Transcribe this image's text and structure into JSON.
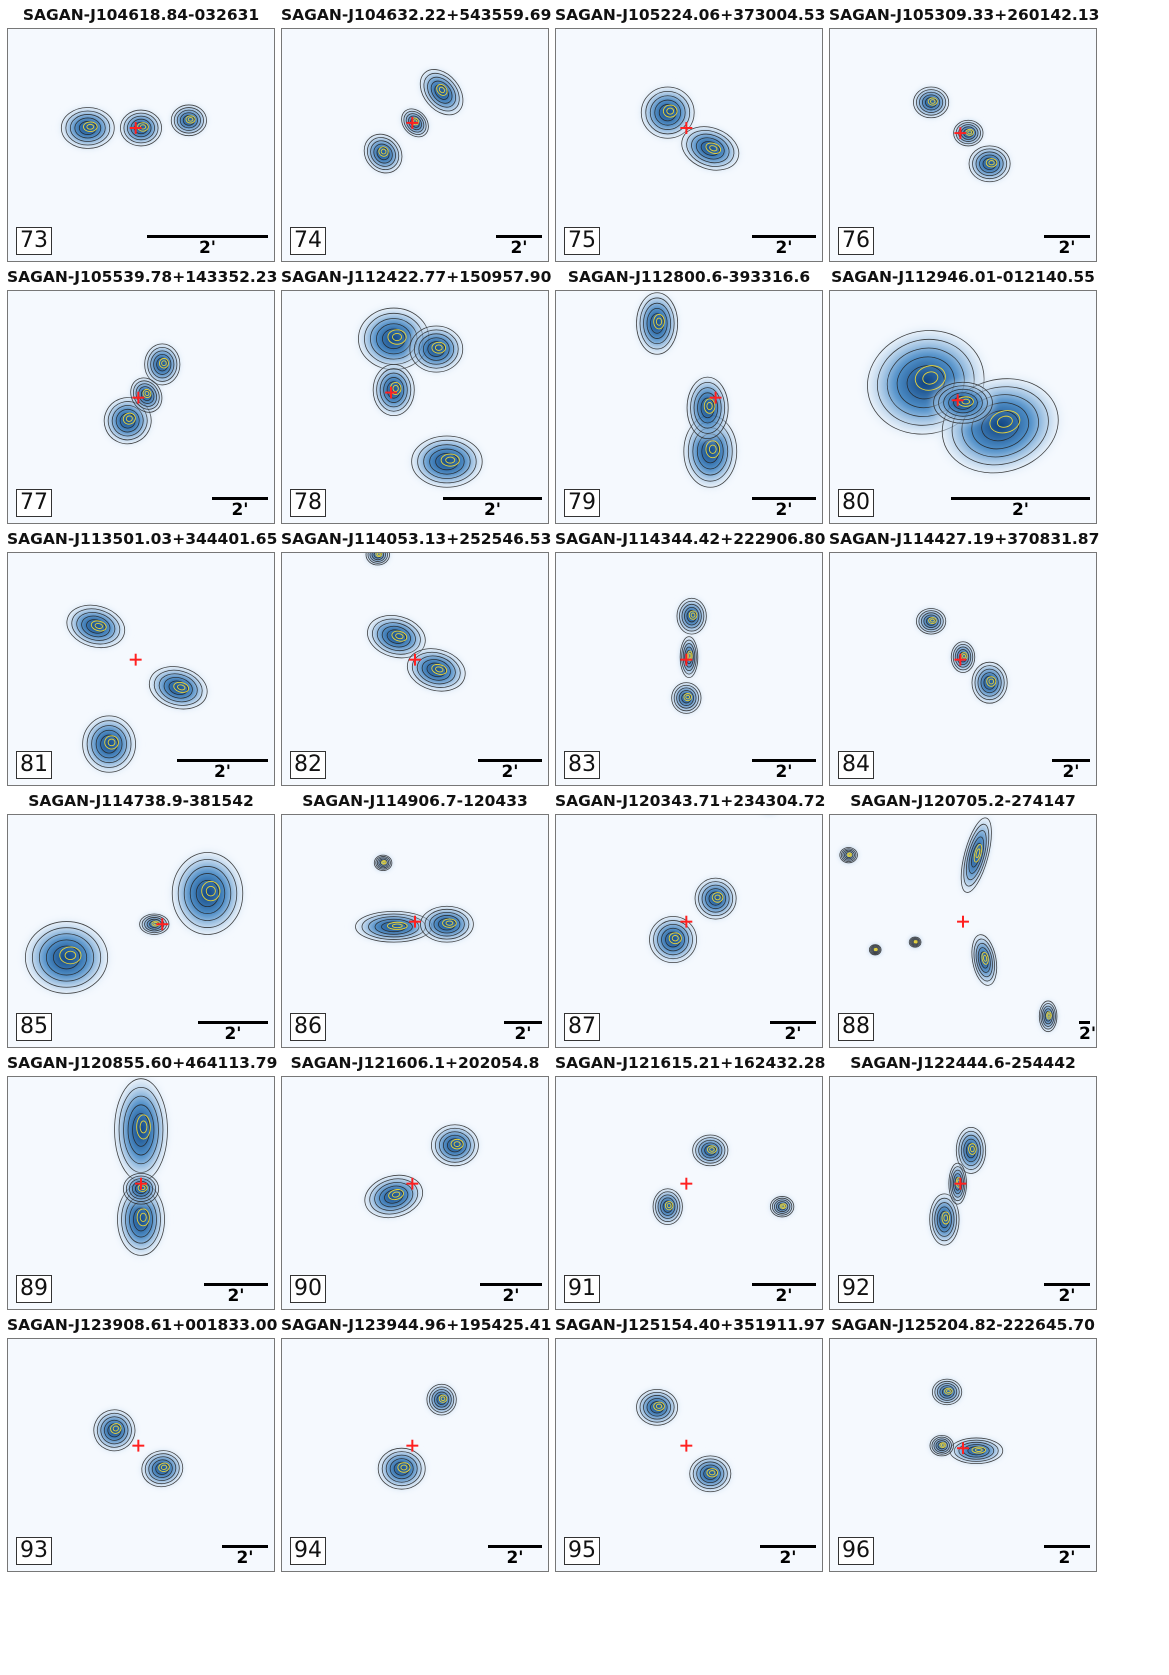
{
  "panels": [
    {
      "id": "73",
      "title": "SAGAN-J104618.84-032631",
      "sources": [
        [
          0.3,
          0.48,
          0.09,
          0.08,
          0
        ],
        [
          0.5,
          0.48,
          0.07,
          0.07,
          0
        ],
        [
          0.68,
          0.45,
          0.06,
          0.06,
          0
        ]
      ],
      "cross": [
        0.48,
        0.48
      ],
      "scale_frac": 0.45
    },
    {
      "id": "74",
      "title": "SAGAN-J104632.22+543559.69",
      "sources": [
        [
          0.38,
          0.58,
          0.06,
          0.08,
          -40
        ],
        [
          0.6,
          0.34,
          0.06,
          0.1,
          -40
        ],
        [
          0.5,
          0.46,
          0.04,
          0.06,
          -40
        ]
      ],
      "cross": [
        0.49,
        0.46
      ],
      "scale_frac": 0.17
    },
    {
      "id": "75",
      "title": "SAGAN-J105224.06+373004.53",
      "sources": [
        [
          0.42,
          0.42,
          0.09,
          0.1,
          0
        ],
        [
          0.58,
          0.56,
          0.1,
          0.08,
          20
        ]
      ],
      "cross": [
        0.49,
        0.48
      ],
      "scale_frac": 0.24
    },
    {
      "id": "76",
      "title": "SAGAN-J105309.33+260142.13",
      "sources": [
        [
          0.38,
          0.38,
          0.06,
          0.06,
          0
        ],
        [
          0.52,
          0.5,
          0.05,
          0.05,
          0
        ],
        [
          0.6,
          0.62,
          0.07,
          0.07,
          0
        ]
      ],
      "cross": [
        0.49,
        0.5
      ],
      "scale_frac": 0.17
    },
    {
      "id": "77",
      "title": "SAGAN-J105539.78+143352.23",
      "sources": [
        [
          0.58,
          0.38,
          0.06,
          0.08,
          0
        ],
        [
          0.45,
          0.6,
          0.08,
          0.09,
          -20
        ],
        [
          0.52,
          0.5,
          0.05,
          0.07,
          -30
        ]
      ],
      "cross": [
        0.49,
        0.51
      ],
      "scale_frac": 0.21
    },
    {
      "id": "78",
      "title": "SAGAN-J112422.77+150957.90",
      "sources": [
        [
          0.42,
          0.28,
          0.12,
          0.12,
          0
        ],
        [
          0.58,
          0.32,
          0.09,
          0.09,
          0
        ],
        [
          0.42,
          0.48,
          0.07,
          0.1,
          0
        ],
        [
          0.62,
          0.76,
          0.12,
          0.1,
          0
        ]
      ],
      "cross": [
        0.41,
        0.49
      ],
      "scale_frac": 0.37
    },
    {
      "id": "79",
      "title": "SAGAN-J112800.6-393316.6",
      "sources": [
        [
          0.38,
          0.22,
          0.07,
          0.12,
          0
        ],
        [
          0.58,
          0.72,
          0.09,
          0.14,
          0
        ],
        [
          0.57,
          0.55,
          0.07,
          0.12,
          0
        ]
      ],
      "cross": [
        0.6,
        0.51
      ],
      "scale_frac": 0.24
    },
    {
      "id": "80",
      "title": "SAGAN-J112946.01-012140.55",
      "sources": [
        [
          0.36,
          0.45,
          0.2,
          0.2,
          -15
        ],
        [
          0.64,
          0.62,
          0.2,
          0.18,
          -15
        ],
        [
          0.5,
          0.53,
          0.1,
          0.08,
          0
        ]
      ],
      "cross": [
        0.48,
        0.52
      ],
      "scale_frac": 0.52
    },
    {
      "id": "81",
      "title": "SAGAN-J113501.03+344401.65",
      "sources": [
        [
          0.33,
          0.38,
          0.1,
          0.08,
          15
        ],
        [
          0.64,
          0.62,
          0.1,
          0.08,
          15
        ],
        [
          0.38,
          0.84,
          0.09,
          0.11,
          0
        ]
      ],
      "cross": [
        0.48,
        0.51
      ],
      "scale_frac": 0.34
    },
    {
      "id": "82",
      "title": "SAGAN-J114053.13+252546.53",
      "sources": [
        [
          0.43,
          0.42,
          0.1,
          0.08,
          15
        ],
        [
          0.58,
          0.55,
          0.1,
          0.08,
          15
        ],
        [
          0.36,
          0.1,
          0.04,
          0.04,
          0
        ]
      ],
      "cross": [
        0.5,
        0.51
      ],
      "scale_frac": 0.24
    },
    {
      "id": "83",
      "title": "SAGAN-J114344.42+222906.80",
      "sources": [
        [
          0.51,
          0.34,
          0.05,
          0.07,
          0
        ],
        [
          0.49,
          0.66,
          0.05,
          0.06,
          0
        ],
        [
          0.5,
          0.5,
          0.03,
          0.08,
          0
        ]
      ],
      "cross": [
        0.49,
        0.51
      ],
      "scale_frac": 0.24
    },
    {
      "id": "84",
      "title": "SAGAN-J114427.19+370831.87",
      "sources": [
        [
          0.38,
          0.36,
          0.05,
          0.05,
          0
        ],
        [
          0.6,
          0.6,
          0.06,
          0.08,
          0
        ],
        [
          0.5,
          0.5,
          0.04,
          0.06,
          0
        ]
      ],
      "cross": [
        0.49,
        0.51
      ],
      "scale_frac": 0.14
    },
    {
      "id": "85",
      "title": "SAGAN-J114738.9-381542",
      "sources": [
        [
          0.22,
          0.65,
          0.14,
          0.14,
          0
        ],
        [
          0.75,
          0.4,
          0.12,
          0.16,
          0
        ],
        [
          0.55,
          0.52,
          0.05,
          0.04,
          0
        ]
      ],
      "cross": [
        0.58,
        0.52
      ],
      "scale_frac": 0.26
    },
    {
      "id": "86",
      "title": "SAGAN-J114906.7-120433",
      "sources": [
        [
          0.42,
          0.53,
          0.13,
          0.06,
          0
        ],
        [
          0.62,
          0.52,
          0.09,
          0.07,
          0
        ],
        [
          0.38,
          0.28,
          0.03,
          0.03,
          0
        ]
      ],
      "cross": [
        0.5,
        0.51
      ],
      "scale_frac": 0.14
    },
    {
      "id": "87",
      "title": "SAGAN-J120343.71+234304.72",
      "sources": [
        [
          0.44,
          0.58,
          0.08,
          0.09,
          0
        ],
        [
          0.6,
          0.42,
          0.07,
          0.08,
          0
        ],
        [
          0.8,
          0.04,
          0.05,
          0.05,
          0
        ]
      ],
      "cross": [
        0.49,
        0.51
      ],
      "scale_frac": 0.17
    },
    {
      "id": "88",
      "title": "SAGAN-J120705.2-274147",
      "sources": [
        [
          0.55,
          0.25,
          0.04,
          0.15,
          15
        ],
        [
          0.58,
          0.66,
          0.04,
          0.1,
          -10
        ],
        [
          0.07,
          0.25,
          0.03,
          0.03,
          0
        ],
        [
          0.82,
          0.88,
          0.03,
          0.06,
          0
        ],
        [
          0.17,
          0.62,
          0.02,
          0.02,
          0
        ],
        [
          0.32,
          0.59,
          0.02,
          0.02,
          0
        ]
      ],
      "cross": [
        0.5,
        0.51
      ],
      "scale_frac": 0.04
    },
    {
      "id": "89",
      "title": "SAGAN-J120855.60+464113.79",
      "sources": [
        [
          0.5,
          0.3,
          0.09,
          0.2,
          0
        ],
        [
          0.5,
          0.65,
          0.08,
          0.14,
          0
        ],
        [
          0.5,
          0.53,
          0.06,
          0.06,
          0
        ]
      ],
      "cross": [
        0.5,
        0.51
      ],
      "scale_frac": 0.24
    },
    {
      "id": "90",
      "title": "SAGAN-J121606.1+202054.8",
      "sources": [
        [
          0.42,
          0.56,
          0.1,
          0.08,
          -15
        ],
        [
          0.65,
          0.36,
          0.08,
          0.08,
          0
        ]
      ],
      "cross": [
        0.49,
        0.51
      ],
      "scale_frac": 0.23
    },
    {
      "id": "91",
      "title": "SAGAN-J121615.21+162432.28",
      "sources": [
        [
          0.58,
          0.38,
          0.06,
          0.06,
          0
        ],
        [
          0.42,
          0.6,
          0.05,
          0.07,
          0
        ],
        [
          0.85,
          0.6,
          0.04,
          0.04,
          0
        ]
      ],
      "cross": [
        0.49,
        0.51
      ],
      "scale_frac": 0.24
    },
    {
      "id": "92",
      "title": "SAGAN-J122444.6-254442",
      "sources": [
        [
          0.53,
          0.38,
          0.05,
          0.09,
          0
        ],
        [
          0.43,
          0.65,
          0.05,
          0.1,
          0
        ],
        [
          0.48,
          0.51,
          0.03,
          0.08,
          0
        ]
      ],
      "cross": [
        0.49,
        0.51
      ],
      "scale_frac": 0.17
    },
    {
      "id": "93",
      "title": "SAGAN-J123908.61+001833.00",
      "sources": [
        [
          0.4,
          0.45,
          0.07,
          0.08,
          -20
        ],
        [
          0.58,
          0.6,
          0.07,
          0.07,
          -10
        ]
      ],
      "cross": [
        0.49,
        0.51
      ],
      "scale_frac": 0.17
    },
    {
      "id": "94",
      "title": "SAGAN-J123944.96+195425.41",
      "sources": [
        [
          0.45,
          0.6,
          0.08,
          0.08,
          0
        ],
        [
          0.6,
          0.33,
          0.05,
          0.06,
          0
        ]
      ],
      "cross": [
        0.49,
        0.51
      ],
      "scale_frac": 0.2
    },
    {
      "id": "95",
      "title": "SAGAN-J125154.40+351911.97",
      "sources": [
        [
          0.38,
          0.36,
          0.07,
          0.07,
          0
        ],
        [
          0.58,
          0.62,
          0.07,
          0.07,
          0
        ]
      ],
      "cross": [
        0.49,
        0.51
      ],
      "scale_frac": 0.21
    },
    {
      "id": "96",
      "title": "SAGAN-J125204.82-222645.70",
      "sources": [
        [
          0.44,
          0.3,
          0.05,
          0.05,
          0
        ],
        [
          0.55,
          0.53,
          0.09,
          0.05,
          0
        ],
        [
          0.42,
          0.51,
          0.04,
          0.04,
          0
        ]
      ],
      "cross": [
        0.5,
        0.52
      ],
      "scale_frac": 0.17
    }
  ],
  "scale_label": "2'",
  "colors": {
    "background": "#f5f9fe",
    "emission_core": "#0b3d7a",
    "emission_mid": "#3e85c4",
    "emission_edge": "#c6dbef",
    "contour_radio": "#222222",
    "contour_optical": "#e6d23a",
    "host_marker": "#ff2020"
  },
  "marker_icon": "red-cross-host-marker"
}
